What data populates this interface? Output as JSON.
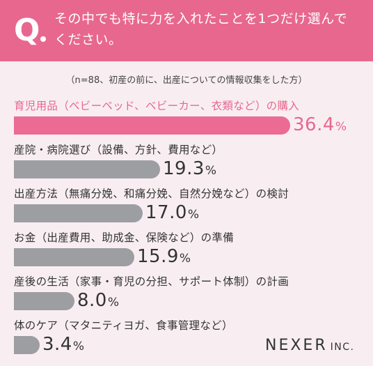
{
  "question": {
    "mark": "Q",
    "text": "その中でも特に力を入れたことを1つだけ選んでください。"
  },
  "note": "（n=88、初産の前に、出産についての情報収集をした方）",
  "brand": {
    "name": "NEXER",
    "suffix": "INC."
  },
  "colors": {
    "accent": "#e8678f",
    "bar_highlight": "#ec6b94",
    "bar_default": "#9d9ea2",
    "background": "#f8eef2"
  },
  "chart_data": {
    "type": "bar",
    "orientation": "horizontal",
    "unit": "%",
    "categories": [
      "育児用品（ベビーベッド、ベビーカー、衣類など）の購入",
      "産院・病院選び（設備、方針、費用など）",
      "出産方法（無痛分娩、和痛分娩、自然分娩など）の検討",
      "お金（出産費用、助成金、保険など）の準備",
      "産後の生活（家事・育児の分担、サポート体制）の計画",
      "体のケア（マタニティヨガ、食事管理など）"
    ],
    "values": [
      36.4,
      19.3,
      17.0,
      15.9,
      8.0,
      3.4
    ],
    "value_labels": [
      "36.4",
      "19.3",
      "17.0",
      "15.9",
      "8.0",
      "3.4"
    ],
    "highlight_index": 0
  }
}
